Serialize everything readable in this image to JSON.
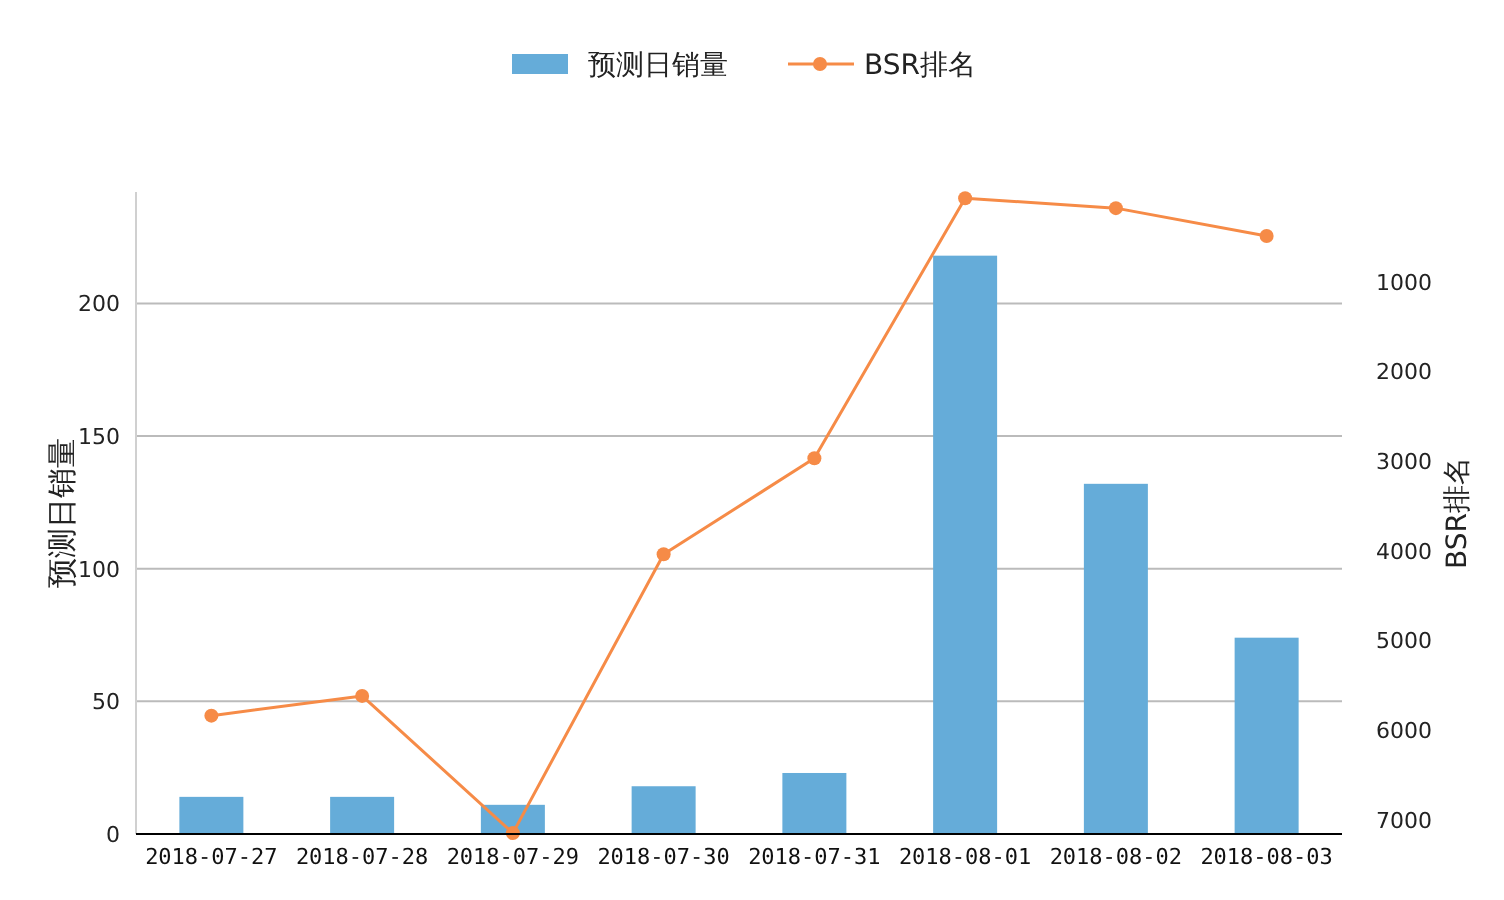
{
  "chart_data": {
    "type": "bar",
    "xlabel": null,
    "ylabel": "预测日销量",
    "y2label": "BSR排名",
    "categories": [
      "2018-07-27",
      "2018-07-28",
      "2018-07-29",
      "2018-07-30",
      "2018-07-31",
      "2018-08-01",
      "2018-08-02",
      "2018-08-03"
    ],
    "series": [
      {
        "name": "预测日销量",
        "color": "#65acd9",
        "values": [
          14,
          14,
          11,
          18,
          23,
          218,
          132,
          74
        ]
      },
      {
        "name": "BSR排名",
        "type": "line",
        "axis": "y2",
        "color": "#f68b47",
        "marker": "circle",
        "values": [
          5840,
          5620,
          7150,
          4040,
          2970,
          70,
          180,
          490
        ]
      }
    ],
    "ylim": [
      0,
      242
    ],
    "yticks": [
      0,
      50,
      100,
      150,
      200
    ],
    "y2lim": [
      7160,
      0
    ],
    "y2ticks": [
      1000,
      2000,
      3000,
      4000,
      5000,
      6000,
      7000
    ],
    "grid": "y",
    "legend": "top"
  }
}
